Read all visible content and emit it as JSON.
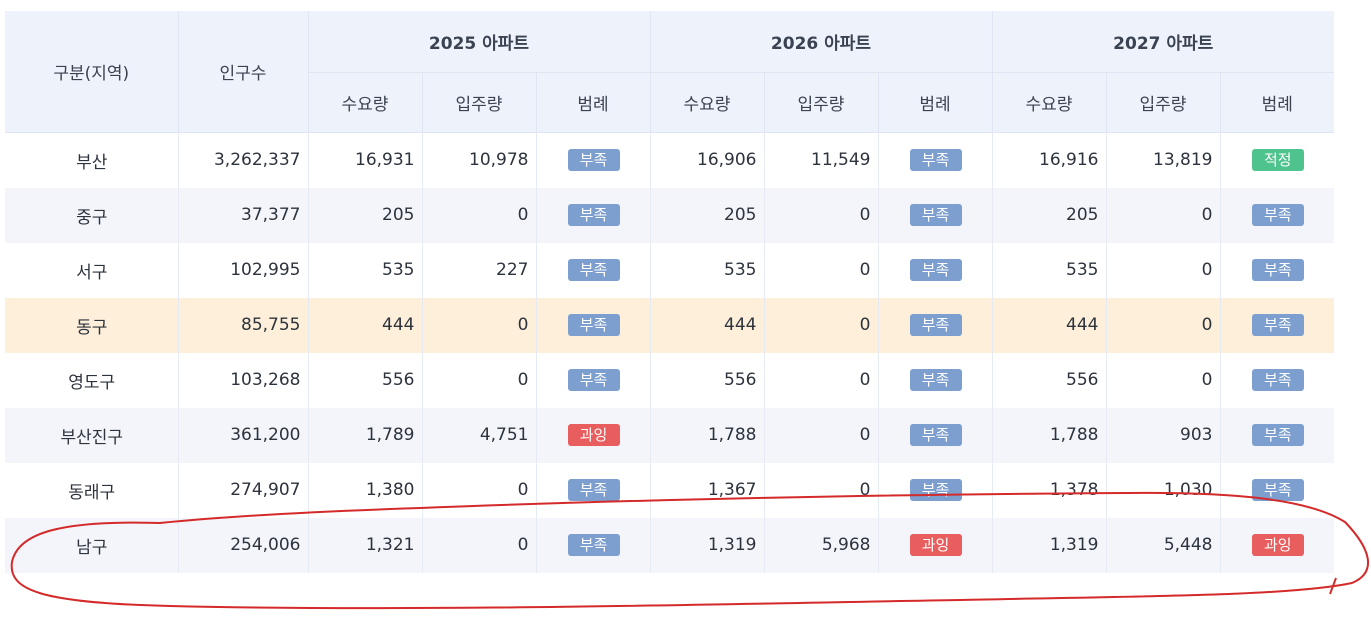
{
  "header": {
    "region": "구분(지역)",
    "population": "인구수",
    "years": [
      "2025 아파트",
      "2026 아파트",
      "2027 아파트"
    ],
    "sub": [
      "수요량",
      "입주량",
      "범례"
    ]
  },
  "colors": {
    "부족": "#7c9fd0",
    "과잉": "#e85d5d",
    "적정": "#4fc38d",
    "highlight_row": "#fdefd9",
    "annotation": "#d42a2a"
  },
  "rows": [
    {
      "region": "부산",
      "population": "3,262,337",
      "y2025": {
        "demand": "16,931",
        "supply": "10,978",
        "legend": "부족"
      },
      "y2026": {
        "demand": "16,906",
        "supply": "11,549",
        "legend": "부족"
      },
      "y2027": {
        "demand": "16,916",
        "supply": "13,819",
        "legend": "적정"
      }
    },
    {
      "region": "중구",
      "population": "37,377",
      "y2025": {
        "demand": "205",
        "supply": "0",
        "legend": "부족"
      },
      "y2026": {
        "demand": "205",
        "supply": "0",
        "legend": "부족"
      },
      "y2027": {
        "demand": "205",
        "supply": "0",
        "legend": "부족"
      }
    },
    {
      "region": "서구",
      "population": "102,995",
      "y2025": {
        "demand": "535",
        "supply": "227",
        "legend": "부족"
      },
      "y2026": {
        "demand": "535",
        "supply": "0",
        "legend": "부족"
      },
      "y2027": {
        "demand": "535",
        "supply": "0",
        "legend": "부족"
      }
    },
    {
      "region": "동구",
      "population": "85,755",
      "highlighted": true,
      "y2025": {
        "demand": "444",
        "supply": "0",
        "legend": "부족"
      },
      "y2026": {
        "demand": "444",
        "supply": "0",
        "legend": "부족"
      },
      "y2027": {
        "demand": "444",
        "supply": "0",
        "legend": "부족"
      }
    },
    {
      "region": "영도구",
      "population": "103,268",
      "y2025": {
        "demand": "556",
        "supply": "0",
        "legend": "부족"
      },
      "y2026": {
        "demand": "556",
        "supply": "0",
        "legend": "부족"
      },
      "y2027": {
        "demand": "556",
        "supply": "0",
        "legend": "부족"
      }
    },
    {
      "region": "부산진구",
      "population": "361,200",
      "y2025": {
        "demand": "1,789",
        "supply": "4,751",
        "legend": "과잉"
      },
      "y2026": {
        "demand": "1,788",
        "supply": "0",
        "legend": "부족"
      },
      "y2027": {
        "demand": "1,788",
        "supply": "903",
        "legend": "부족"
      }
    },
    {
      "region": "동래구",
      "population": "274,907",
      "y2025": {
        "demand": "1,380",
        "supply": "0",
        "legend": "부족"
      },
      "y2026": {
        "demand": "1,367",
        "supply": "0",
        "legend": "부족"
      },
      "y2027": {
        "demand": "1,378",
        "supply": "1,030",
        "legend": "부족"
      }
    },
    {
      "region": "남구",
      "population": "254,006",
      "y2025": {
        "demand": "1,321",
        "supply": "0",
        "legend": "부족"
      },
      "y2026": {
        "demand": "1,319",
        "supply": "5,968",
        "legend": "과잉"
      },
      "y2027": {
        "demand": "1,319",
        "supply": "5,448",
        "legend": "과잉"
      }
    }
  ]
}
